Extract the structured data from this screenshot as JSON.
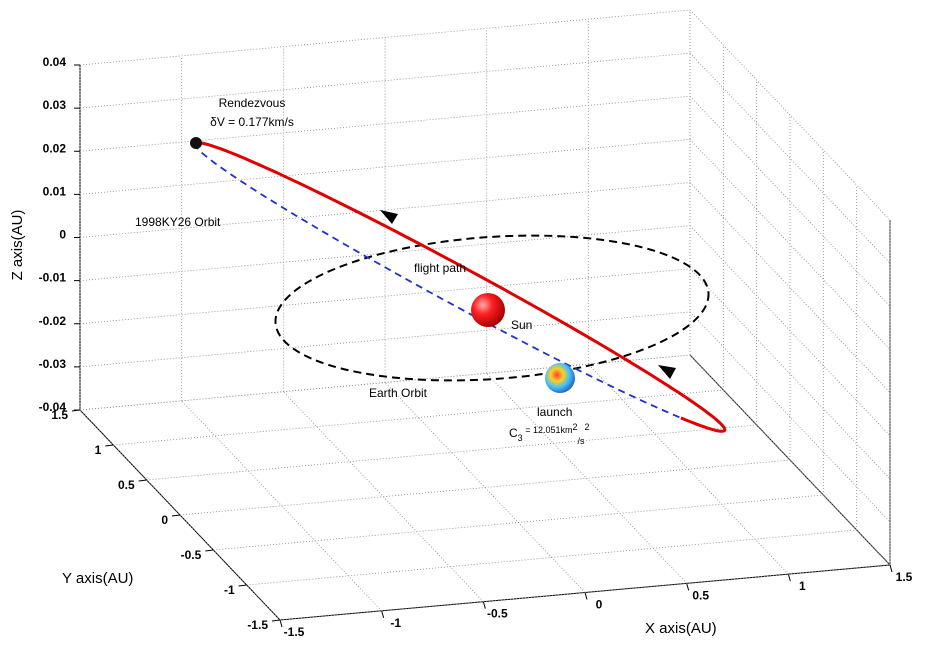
{
  "chart_data": {
    "type": "orbit3d",
    "xlabel": "X axis(AU)",
    "ylabel": "Y axis(AU)",
    "zlabel": "Z axis(AU)",
    "xlim": [
      -1.5,
      1.5
    ],
    "xticks": [
      -1.5,
      -1,
      -0.5,
      0,
      0.5,
      1,
      1.5
    ],
    "ylim": [
      -1.5,
      1.5
    ],
    "yticks": [
      -1.5,
      -1,
      -0.5,
      0,
      0.5,
      1,
      1.5
    ],
    "zlim": [
      -0.04,
      0.04
    ],
    "zticks": [
      -0.04,
      -0.03,
      -0.02,
      -0.01,
      0,
      0.01,
      0.02,
      0.03,
      0.04
    ],
    "grid": true,
    "annotations": {
      "rendezvous": "Rendezvous",
      "delta_v": "δV = 0.177km/s",
      "asteroid_orbit": "1998KY26 Orbit",
      "flight_path": "flight path",
      "sun": "Sun",
      "earth_orbit": "Earth Orbit",
      "launch": "launch",
      "c3": [
        "C",
        "3",
        " = 12.051km",
        "2",
        "/s",
        "2"
      ]
    }
  }
}
